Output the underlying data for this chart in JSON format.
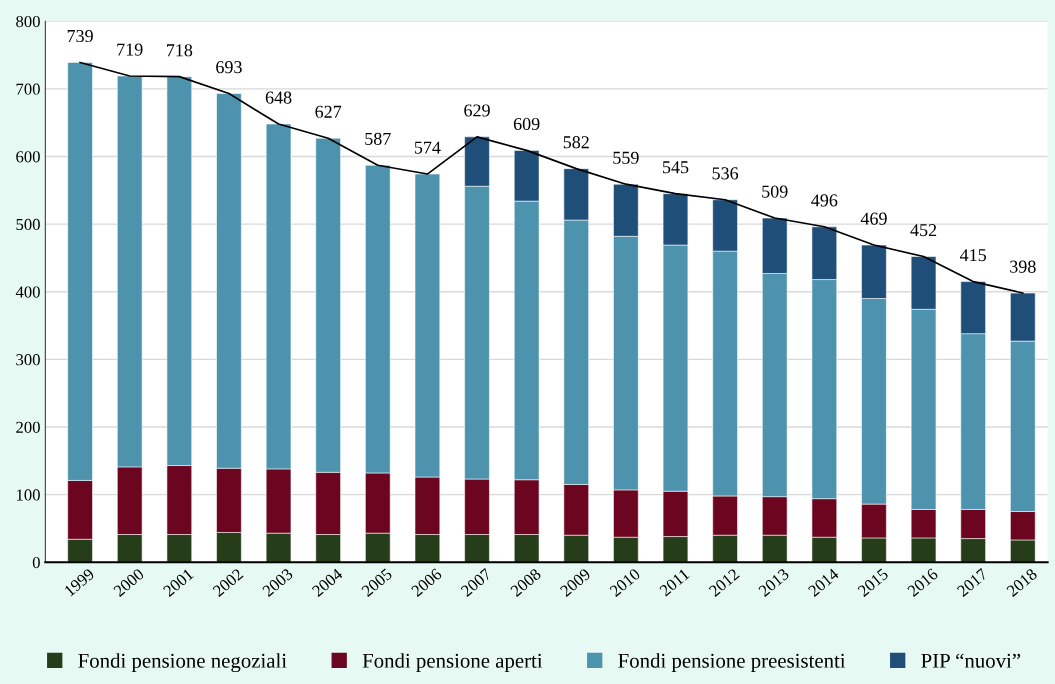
{
  "chart_data": {
    "type": "bar",
    "stacked": true,
    "categories": [
      "1999",
      "2000",
      "2001",
      "2002",
      "2003",
      "2004",
      "2005",
      "2006",
      "2007",
      "2008",
      "2009",
      "2010",
      "2011",
      "2012",
      "2013",
      "2014",
      "2015",
      "2016",
      "2017",
      "2018"
    ],
    "series": [
      {
        "name": "Fondi pensione negoziali",
        "color": "#263d1a",
        "values": [
          34,
          41,
          41,
          44,
          43,
          41,
          43,
          41,
          41,
          41,
          40,
          37,
          38,
          40,
          40,
          37,
          36,
          36,
          35,
          33
        ]
      },
      {
        "name": "Fondi pensione aperti",
        "color": "#6b0520",
        "values": [
          87,
          100,
          102,
          95,
          95,
          92,
          89,
          85,
          82,
          81,
          75,
          70,
          67,
          58,
          57,
          57,
          50,
          42,
          43,
          42
        ]
      },
      {
        "name": "Fondi pensione preesistenti",
        "color": "#4e93ae",
        "values": [
          618,
          578,
          575,
          554,
          510,
          494,
          455,
          448,
          433,
          412,
          391,
          375,
          364,
          362,
          330,
          324,
          304,
          296,
          260,
          252
        ]
      },
      {
        "name": "PIP “nuovi”",
        "color": "#1f4e79",
        "values": [
          null,
          null,
          null,
          null,
          null,
          null,
          null,
          null,
          73,
          75,
          76,
          77,
          76,
          76,
          82,
          78,
          79,
          78,
          77,
          71
        ]
      },
      {
        "type": "line",
        "color": "#000000",
        "data_labels": true,
        "values": [
          739,
          719,
          718,
          693,
          648,
          627,
          587,
          574,
          629,
          609,
          582,
          559,
          545,
          536,
          509,
          496,
          469,
          452,
          415,
          398
        ]
      }
    ],
    "ylim": [
      0,
      800
    ],
    "yticks": [
      0,
      100,
      200,
      300,
      400,
      500,
      600,
      700,
      800
    ],
    "grid": "y",
    "legend": "bottom"
  }
}
